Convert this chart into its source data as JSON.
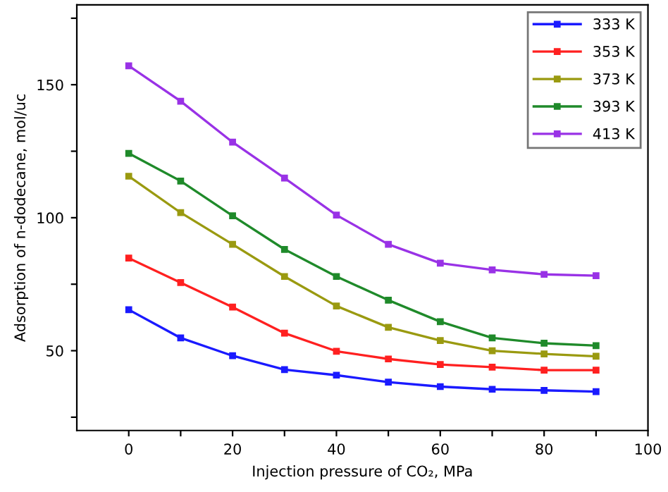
{
  "chart_data": {
    "type": "line",
    "xlabel": "Injection pressure of CO₂, MPa",
    "ylabel": "Adsorption of n-dodecane, mol/uc",
    "x": [
      0,
      10,
      20,
      30,
      40,
      50,
      60,
      70,
      80,
      90
    ],
    "series": [
      {
        "name": "333 K",
        "color": "#1a1aff",
        "values": [
          65.4,
          54.8,
          48.1,
          42.9,
          40.8,
          38.2,
          36.5,
          35.5,
          35.1,
          34.6
        ]
      },
      {
        "name": "353 K",
        "color": "#ff2020",
        "values": [
          84.8,
          75.6,
          66.4,
          56.6,
          49.8,
          46.9,
          44.8,
          43.8,
          42.7,
          42.7
        ]
      },
      {
        "name": "373 K",
        "color": "#9a9a10",
        "values": [
          115.6,
          101.9,
          90.0,
          77.9,
          66.8,
          58.8,
          53.8,
          50.0,
          48.8,
          47.9
        ]
      },
      {
        "name": "393 K",
        "color": "#1f8a2a",
        "values": [
          124.2,
          113.8,
          100.7,
          88.1,
          77.9,
          69.0,
          60.9,
          54.8,
          52.8,
          51.9
        ]
      },
      {
        "name": "413 K",
        "color": "#9932e6",
        "values": [
          157.1,
          143.8,
          128.4,
          114.9,
          101.0,
          90.0,
          82.9,
          80.4,
          78.7,
          78.2
        ]
      }
    ],
    "xlim": [
      -10,
      100
    ],
    "ylim": [
      20,
      180
    ],
    "xticks": [
      0,
      {
        "value": 10,
        "label": null
      },
      20,
      {
        "value": 30,
        "label": null
      },
      40,
      {
        "value": 50,
        "label": null
      },
      60,
      {
        "value": 70,
        "label": null
      },
      80,
      {
        "value": 90,
        "label": null
      },
      100
    ],
    "yticks": [
      {
        "value": 25,
        "label": null
      },
      50,
      {
        "value": 75,
        "label": null
      },
      100,
      {
        "value": 125,
        "label": null
      },
      150,
      {
        "value": 175,
        "label": null
      }
    ],
    "marker": "square",
    "line_style": "solid",
    "grid": false,
    "legend": "top right"
  }
}
